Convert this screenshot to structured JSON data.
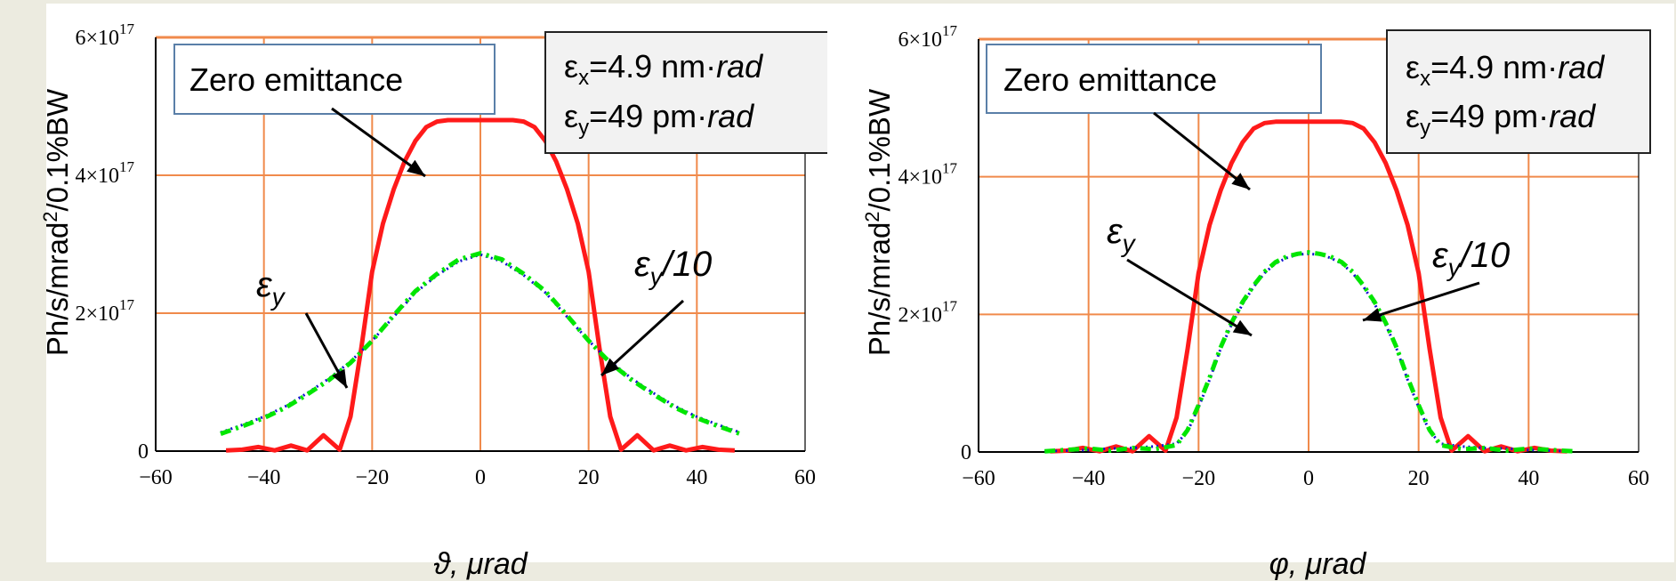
{
  "colors": {
    "background": "#ecebe0",
    "panel": "#ffffff",
    "grid": "#f08a4b",
    "zero": "#ff1a1a",
    "green": "#00e600",
    "blue": "#1010d0",
    "box_fill": "#f2f2f2"
  },
  "chart_data": [
    {
      "type": "line",
      "xlabel": "ϑ, μrad",
      "ylabel": "Ph/s/mrad²/0.1%BW",
      "xlim": [
        -60,
        60
      ],
      "ylim": [
        0,
        6e+17
      ],
      "x_ticks": [
        "−60",
        "−40",
        "−20",
        "0",
        "20",
        "40",
        "60"
      ],
      "y_ticks": [
        {
          "mant": "0",
          "exp": ""
        },
        {
          "mant": "2×10",
          "exp": "17"
        },
        {
          "mant": "4×10",
          "exp": "17"
        },
        {
          "mant": "6×10",
          "exp": "17"
        }
      ],
      "grid": true,
      "legend_box": "Zero emittance",
      "emittance_box": {
        "ex_pre": "ε",
        "ex_sub": "x",
        "ex_val": "=4.9 nm·",
        "ex_unit": "rad",
        "ey_pre": "ε",
        "ey_sub": "y",
        "ey_val": "=49 pm·",
        "ey_unit": "rad"
      },
      "annotations": [
        {
          "pre": "ε",
          "sub": "y",
          "post": ""
        },
        {
          "pre": "ε",
          "sub": "y",
          "post": "/10"
        }
      ],
      "series": [
        {
          "values_id": "zero1",
          "x": [
            -47,
            -44,
            -41,
            -38,
            -35,
            -32,
            -29,
            -26,
            -24,
            -22,
            -20,
            -18,
            -16,
            -14,
            -12,
            -10,
            -8,
            -6,
            -4,
            -2,
            0,
            2,
            4,
            6,
            8,
            10,
            12,
            14,
            16,
            18,
            20,
            22,
            24,
            26,
            29,
            32,
            35,
            38,
            41,
            44,
            47
          ],
          "y": [
            1000000000000000.0,
            2000000000000000.0,
            6000000000000000.0,
            1000000000000000.0,
            8000000000000000.0,
            1000000000000000.0,
            2.3e+16,
            2000000000000000.0,
            5e+16,
            1.5e+17,
            2.6e+17,
            3.3e+17,
            3.8e+17,
            4.2e+17,
            4.5e+17,
            4.7e+17,
            4.78e+17,
            4.8e+17,
            4.8e+17,
            4.8e+17,
            4.8e+17,
            4.8e+17,
            4.8e+17,
            4.8e+17,
            4.78e+17,
            4.7e+17,
            4.5e+17,
            4.2e+17,
            3.8e+17,
            3.3e+17,
            2.6e+17,
            1.5e+17,
            5e+16,
            2000000000000000.0,
            2.3e+16,
            1000000000000000.0,
            8000000000000000.0,
            1000000000000000.0,
            6000000000000000.0,
            2000000000000000.0,
            1000000000000000.0
          ]
        },
        {
          "values_id": "ey1",
          "x": [
            -48,
            -44,
            -40,
            -36,
            -32,
            -28,
            -24,
            -20,
            -16,
            -12,
            -8,
            -4,
            0,
            4,
            8,
            12,
            16,
            20,
            24,
            28,
            32,
            36,
            40,
            44,
            48
          ],
          "y": [
            2.7e+16,
            3.8e+16,
            5e+16,
            6.5e+16,
            8.4e+16,
            1.05e+17,
            1.3e+17,
            1.6e+17,
            1.95e+17,
            2.3e+17,
            2.55e+17,
            2.75e+17,
            2.85e+17,
            2.75e+17,
            2.55e+17,
            2.3e+17,
            1.95e+17,
            1.6e+17,
            1.3e+17,
            1.05e+17,
            8.4e+16,
            6.5e+16,
            5e+16,
            3.8e+16,
            2.7e+16
          ]
        },
        {
          "values_id": "ey10_1",
          "x": [
            -48,
            -44,
            -40,
            -36,
            -32,
            -28,
            -24,
            -20,
            -16,
            -12,
            -8,
            -4,
            0,
            4,
            8,
            12,
            16,
            20,
            24,
            28,
            32,
            36,
            40,
            44,
            48
          ],
          "y": [
            2.5e+16,
            3.6e+16,
            4.8e+16,
            6.3e+16,
            8.2e+16,
            1.03e+17,
            1.28e+17,
            1.6e+17,
            1.97e+17,
            2.32e+17,
            2.57e+17,
            2.78e+17,
            2.87e+17,
            2.78e+17,
            2.57e+17,
            2.32e+17,
            1.97e+17,
            1.6e+17,
            1.28e+17,
            1.03e+17,
            8.2e+16,
            6.3e+16,
            4.8e+16,
            3.6e+16,
            2.5e+16
          ]
        }
      ]
    },
    {
      "type": "line",
      "xlabel": "φ, μrad",
      "ylabel": "Ph/s/mrad²/0.1%BW",
      "xlim": [
        -60,
        60
      ],
      "ylim": [
        0,
        6e+17
      ],
      "x_ticks": [
        "−60",
        "−40",
        "−20",
        "0",
        "20",
        "40",
        "60"
      ],
      "y_ticks": [
        {
          "mant": "0",
          "exp": ""
        },
        {
          "mant": "2×10",
          "exp": "17"
        },
        {
          "mant": "4×10",
          "exp": "17"
        },
        {
          "mant": "6×10",
          "exp": "17"
        }
      ],
      "grid": true,
      "legend_box": "Zero emittance",
      "emittance_box": {
        "ex_pre": "ε",
        "ex_sub": "x",
        "ex_val": "=4.9 nm·",
        "ex_unit": "rad",
        "ey_pre": "ε",
        "ey_sub": "y",
        "ey_val": "=49 pm·",
        "ey_unit": "rad"
      },
      "annotations": [
        {
          "pre": "ε",
          "sub": "y",
          "post": ""
        },
        {
          "pre": "ε",
          "sub": "y",
          "post": "/10"
        }
      ],
      "series": [
        {
          "values_id": "zero2",
          "x": [
            -47,
            -44,
            -41,
            -38,
            -35,
            -32,
            -29,
            -26,
            -24,
            -22,
            -20,
            -18,
            -16,
            -14,
            -12,
            -10,
            -8,
            -6,
            -4,
            -2,
            0,
            2,
            4,
            6,
            8,
            10,
            12,
            14,
            16,
            18,
            20,
            22,
            24,
            26,
            29,
            32,
            35,
            38,
            41,
            44,
            47
          ],
          "y": [
            1000000000000000.0,
            2000000000000000.0,
            6000000000000000.0,
            1000000000000000.0,
            8000000000000000.0,
            1000000000000000.0,
            2.3e+16,
            2000000000000000.0,
            5e+16,
            1.5e+17,
            2.6e+17,
            3.3e+17,
            3.8e+17,
            4.2e+17,
            4.5e+17,
            4.7e+17,
            4.78e+17,
            4.8e+17,
            4.8e+17,
            4.8e+17,
            4.8e+17,
            4.8e+17,
            4.8e+17,
            4.8e+17,
            4.78e+17,
            4.7e+17,
            4.5e+17,
            4.2e+17,
            3.8e+17,
            3.3e+17,
            2.6e+17,
            1.5e+17,
            5e+16,
            2000000000000000.0,
            2.3e+16,
            1000000000000000.0,
            8000000000000000.0,
            1000000000000000.0,
            6000000000000000.0,
            2000000000000000.0,
            1000000000000000.0
          ]
        },
        {
          "values_id": "ey2",
          "x": [
            -48,
            -44,
            -40,
            -36,
            -32,
            -28,
            -24,
            -22,
            -20,
            -18,
            -16,
            -14,
            -12,
            -10,
            -8,
            -6,
            -4,
            -2,
            0,
            2,
            4,
            6,
            8,
            10,
            12,
            14,
            16,
            18,
            20,
            22,
            24,
            28,
            32,
            36,
            40,
            44,
            48
          ],
          "y": [
            1000000000000000.0,
            2000000000000000.0,
            3000000000000000.0,
            5000000000000000.0,
            6000000000000000.0,
            8000000000000000.0,
            1.2e+16,
            3e+16,
            6.5e+16,
            1.05e+17,
            1.5e+17,
            1.85e+17,
            2.15e+17,
            2.4e+17,
            2.6e+17,
            2.74e+17,
            2.82e+17,
            2.87e+17,
            2.88e+17,
            2.87e+17,
            2.82e+17,
            2.74e+17,
            2.6e+17,
            2.4e+17,
            2.15e+17,
            1.85e+17,
            1.5e+17,
            1.05e+17,
            6.5e+16,
            3e+16,
            1.2e+16,
            8000000000000000.0,
            6000000000000000.0,
            5000000000000000.0,
            3000000000000000.0,
            2000000000000000.0,
            1000000000000000.0
          ]
        },
        {
          "values_id": "ey10_2",
          "x": [
            -48,
            -44,
            -40,
            -36,
            -32,
            -28,
            -24,
            -22,
            -20,
            -18,
            -16,
            -14,
            -12,
            -10,
            -8,
            -6,
            -4,
            -2,
            0,
            2,
            4,
            6,
            8,
            10,
            12,
            14,
            16,
            18,
            20,
            22,
            24,
            28,
            32,
            36,
            40,
            44,
            48
          ],
          "y": [
            1000000000000000.0,
            3000000000000000.0,
            5000000000000000.0,
            2000000000000000.0,
            6000000000000000.0,
            4000000000000000.0,
            1e+16,
            3.2e+16,
            6.8e+16,
            1.08e+17,
            1.52e+17,
            1.88e+17,
            2.18e+17,
            2.42e+17,
            2.62e+17,
            2.76e+17,
            2.84e+17,
            2.88e+17,
            2.9e+17,
            2.88e+17,
            2.84e+17,
            2.76e+17,
            2.62e+17,
            2.42e+17,
            2.18e+17,
            1.88e+17,
            1.52e+17,
            1.08e+17,
            6.8e+16,
            3.2e+16,
            1e+16,
            4000000000000000.0,
            6000000000000000.0,
            2000000000000000.0,
            5000000000000000.0,
            3000000000000000.0,
            1000000000000000.0
          ]
        }
      ]
    }
  ]
}
